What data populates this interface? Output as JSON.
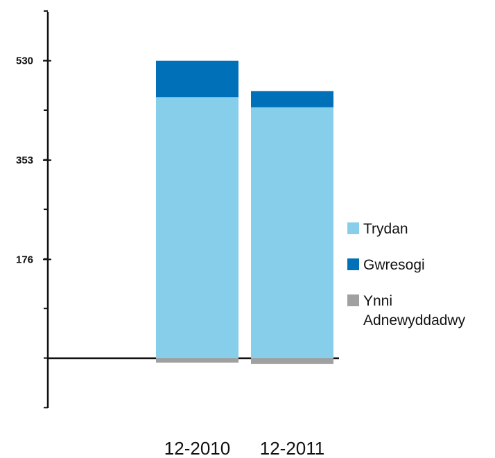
{
  "chart_data": {
    "type": "bar",
    "stacked": true,
    "categories": [
      "12-2010",
      "12-2011"
    ],
    "series": [
      {
        "name": "Trydan",
        "color": "#87ceeb",
        "values": [
          465,
          447
        ]
      },
      {
        "name": "Gwresogi",
        "color": "#0071b8",
        "values": [
          65,
          29
        ]
      },
      {
        "name": "Ynni Adnewyddadwy",
        "color": "#a0a0a0",
        "values": [
          -8,
          -10
        ]
      }
    ],
    "legend": {
      "position": "right",
      "items": [
        {
          "label_lines": [
            "Trydan"
          ],
          "color": "#87ceeb"
        },
        {
          "label_lines": [
            "Gwresogi"
          ],
          "color": "#0071b8"
        },
        {
          "label_lines": [
            "Ynni",
            "Adnewyddadwy"
          ],
          "color": "#a0a0a0"
        }
      ]
    },
    "y_ticks": [
      176,
      353,
      530
    ],
    "y_tick_labels": [
      "176",
      "353",
      "530"
    ],
    "ylim": [
      -88,
      618
    ],
    "title": "",
    "xlabel": "",
    "ylabel": "",
    "grid": false
  }
}
